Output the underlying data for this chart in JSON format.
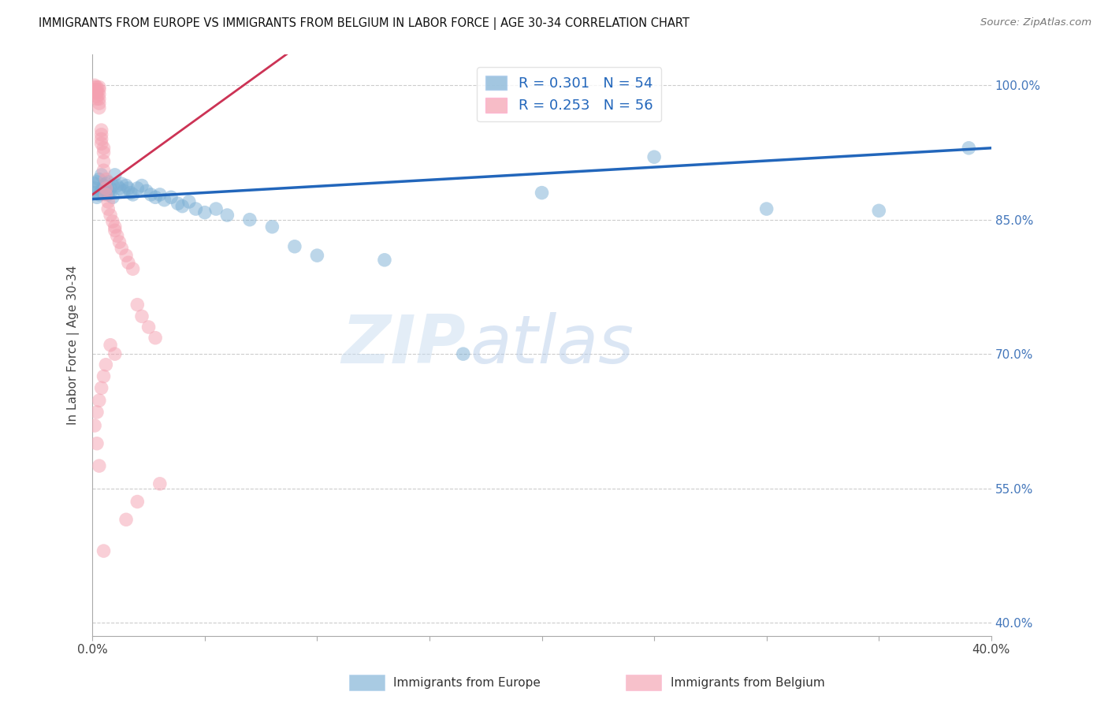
{
  "title": "IMMIGRANTS FROM EUROPE VS IMMIGRANTS FROM BELGIUM IN LABOR FORCE | AGE 30-34 CORRELATION CHART",
  "source": "Source: ZipAtlas.com",
  "ylabel": "In Labor Force | Age 30-34",
  "ylabel_ticks": [
    "100.0%",
    "85.0%",
    "70.0%",
    "55.0%",
    "40.0%"
  ],
  "ylabel_values": [
    1.0,
    0.85,
    0.7,
    0.55,
    0.4
  ],
  "xmin": 0.0,
  "xmax": 0.4,
  "ymin": 0.385,
  "ymax": 1.035,
  "legend_blue_r": "R = 0.301",
  "legend_blue_n": "N = 54",
  "legend_pink_r": "R = 0.253",
  "legend_pink_n": "N = 56",
  "blue_color": "#7BAFD4",
  "pink_color": "#F4A0B0",
  "blue_line_color": "#2266BB",
  "pink_line_color": "#CC3355",
  "watermark_zip": "ZIP",
  "watermark_atlas": "atlas",
  "blue_scatter_x": [
    0.001,
    0.001,
    0.001,
    0.002,
    0.002,
    0.003,
    0.003,
    0.004,
    0.004,
    0.005,
    0.005,
    0.006,
    0.006,
    0.007,
    0.007,
    0.008,
    0.008,
    0.009,
    0.009,
    0.01,
    0.011,
    0.012,
    0.013,
    0.014,
    0.015,
    0.016,
    0.017,
    0.018,
    0.02,
    0.022,
    0.024,
    0.026,
    0.028,
    0.03,
    0.032,
    0.035,
    0.038,
    0.04,
    0.043,
    0.046,
    0.05,
    0.055,
    0.06,
    0.07,
    0.08,
    0.09,
    0.1,
    0.13,
    0.165,
    0.2,
    0.25,
    0.3,
    0.35,
    0.39
  ],
  "blue_scatter_y": [
    0.88,
    0.885,
    0.89,
    0.875,
    0.892,
    0.878,
    0.895,
    0.882,
    0.9,
    0.888,
    0.885,
    0.882,
    0.89,
    0.878,
    0.892,
    0.885,
    0.88,
    0.888,
    0.875,
    0.9,
    0.888,
    0.885,
    0.89,
    0.882,
    0.888,
    0.885,
    0.88,
    0.878,
    0.885,
    0.888,
    0.882,
    0.878,
    0.875,
    0.878,
    0.872,
    0.875,
    0.868,
    0.865,
    0.87,
    0.862,
    0.858,
    0.862,
    0.855,
    0.85,
    0.842,
    0.82,
    0.81,
    0.805,
    0.7,
    0.88,
    0.92,
    0.862,
    0.86,
    0.93
  ],
  "pink_scatter_x": [
    0.001,
    0.001,
    0.001,
    0.001,
    0.002,
    0.002,
    0.002,
    0.002,
    0.002,
    0.003,
    0.003,
    0.003,
    0.003,
    0.003,
    0.003,
    0.004,
    0.004,
    0.004,
    0.004,
    0.005,
    0.005,
    0.005,
    0.005,
    0.006,
    0.006,
    0.006,
    0.007,
    0.007,
    0.008,
    0.009,
    0.01,
    0.01,
    0.011,
    0.012,
    0.013,
    0.015,
    0.016,
    0.018,
    0.02,
    0.022,
    0.025,
    0.028,
    0.008,
    0.01,
    0.006,
    0.005,
    0.004,
    0.003,
    0.002,
    0.001,
    0.002,
    0.003,
    0.03,
    0.02,
    0.015,
    0.005
  ],
  "pink_scatter_y": [
    1.0,
    0.998,
    0.995,
    0.992,
    0.998,
    0.995,
    0.992,
    0.988,
    0.985,
    0.998,
    0.995,
    0.99,
    0.985,
    0.98,
    0.975,
    0.95,
    0.945,
    0.94,
    0.935,
    0.93,
    0.925,
    0.915,
    0.905,
    0.895,
    0.885,
    0.878,
    0.87,
    0.862,
    0.855,
    0.848,
    0.842,
    0.838,
    0.832,
    0.825,
    0.818,
    0.81,
    0.802,
    0.795,
    0.755,
    0.742,
    0.73,
    0.718,
    0.71,
    0.7,
    0.688,
    0.675,
    0.662,
    0.648,
    0.635,
    0.62,
    0.6,
    0.575,
    0.555,
    0.535,
    0.515,
    0.48
  ],
  "pink_trendline_x0": 0.0,
  "pink_trendline_y0": 0.878,
  "pink_trendline_x1": 0.07,
  "pink_trendline_y1": 1.005,
  "blue_trendline_x0": 0.0,
  "blue_trendline_y0": 0.873,
  "blue_trendline_x1": 0.4,
  "blue_trendline_y1": 0.93,
  "grid_color": "#CCCCCC",
  "background_color": "#FFFFFF"
}
